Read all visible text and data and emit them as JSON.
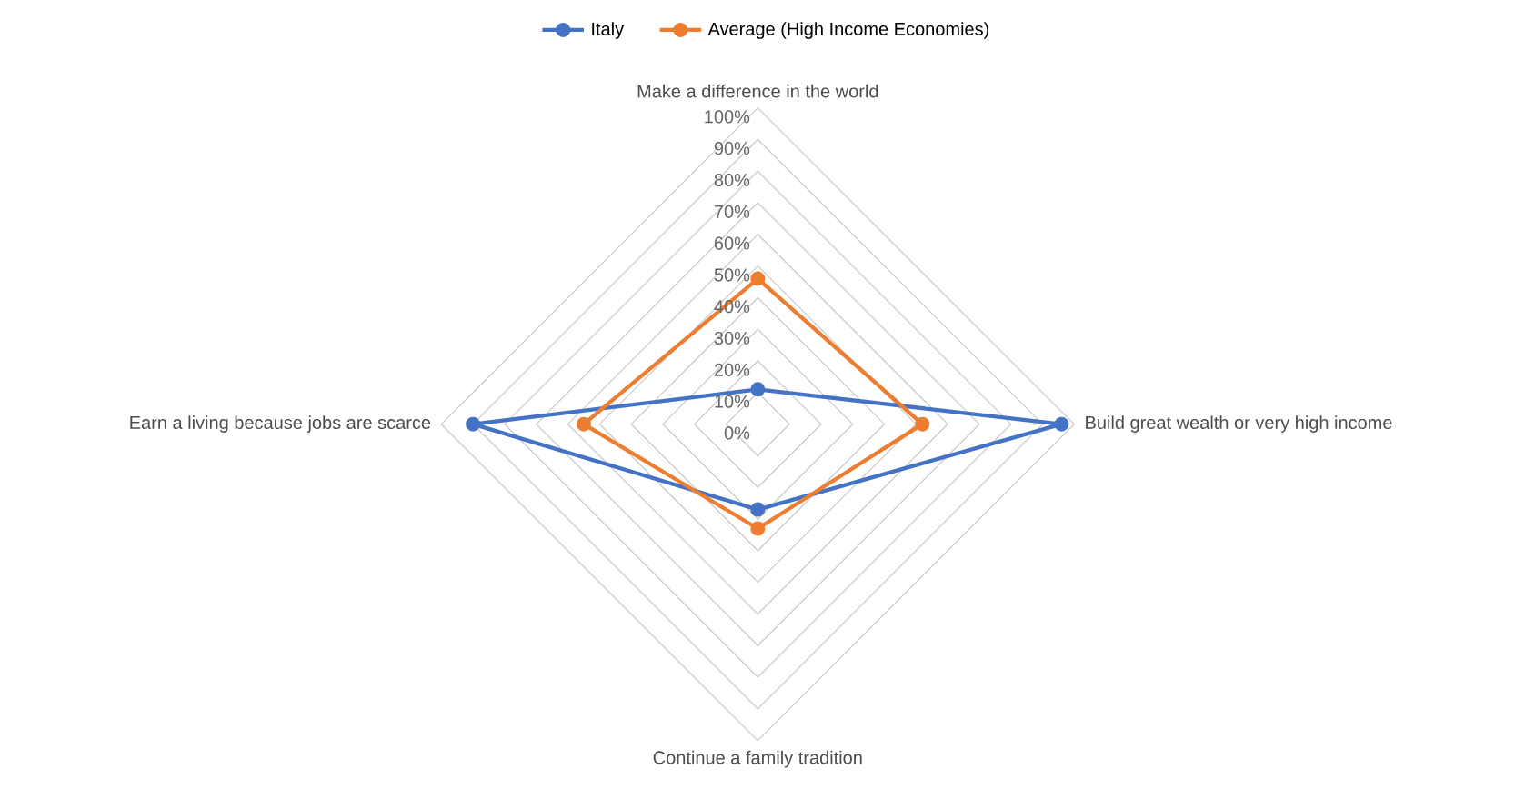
{
  "chart_data": {
    "type": "radar",
    "categories": [
      "Make a difference in the world",
      "Build great wealth or very high income",
      "Continue a family tradition",
      "Earn a living because jobs are scarce"
    ],
    "series": [
      {
        "name": "Italy",
        "color": "#4472c4",
        "values": [
          11,
          96,
          27,
          90
        ]
      },
      {
        "name": "Average (High Income Economies)",
        "color": "#ed7d31",
        "values": [
          46,
          52,
          33,
          55
        ]
      }
    ],
    "ylim": [
      0,
      100
    ],
    "yticks": [
      {
        "value": 0,
        "label": "0%"
      },
      {
        "value": 10,
        "label": "10%"
      },
      {
        "value": 20,
        "label": "20%"
      },
      {
        "value": 30,
        "label": "30%"
      },
      {
        "value": 40,
        "label": "40%"
      },
      {
        "value": 50,
        "label": "50%"
      },
      {
        "value": 60,
        "label": "60%"
      },
      {
        "value": 70,
        "label": "70%"
      },
      {
        "value": 80,
        "label": "80%"
      },
      {
        "value": 90,
        "label": "90%"
      },
      {
        "value": 100,
        "label": "100%"
      }
    ],
    "grid": true,
    "legend": "top",
    "marker": "circle",
    "line_style": "solid"
  }
}
